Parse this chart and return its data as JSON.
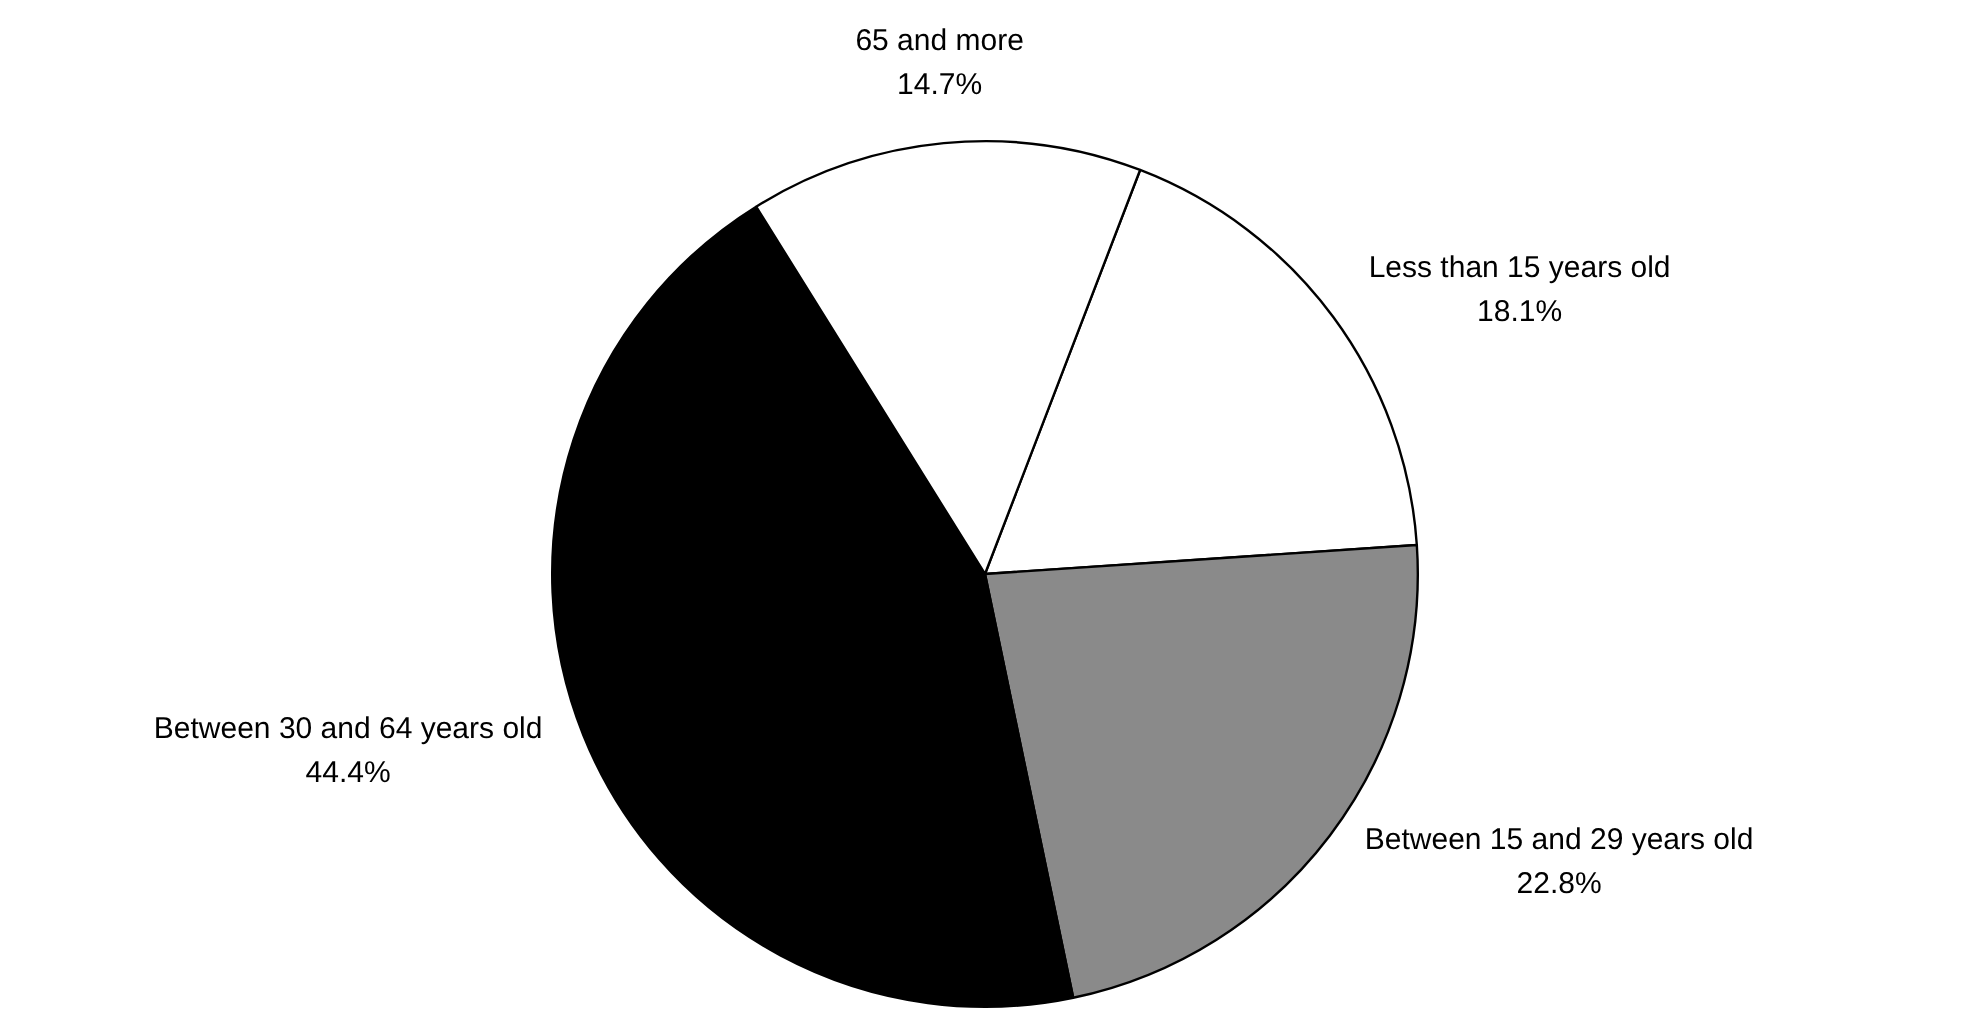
{
  "chart_data": {
    "type": "pie",
    "categories": [
      "Less than 15 years old",
      "Between 15 and 29 years old",
      "Between 30 and 64 years old",
      "65 and more"
    ],
    "values": [
      18.1,
      22.8,
      44.4,
      14.7
    ],
    "value_labels": [
      "18.1%",
      "22.8%",
      "44.4%",
      "14.7%"
    ],
    "colors": [
      "#ffffff",
      "#8a8a8a",
      "#000000",
      "#ffffff"
    ],
    "legend": false
  }
}
